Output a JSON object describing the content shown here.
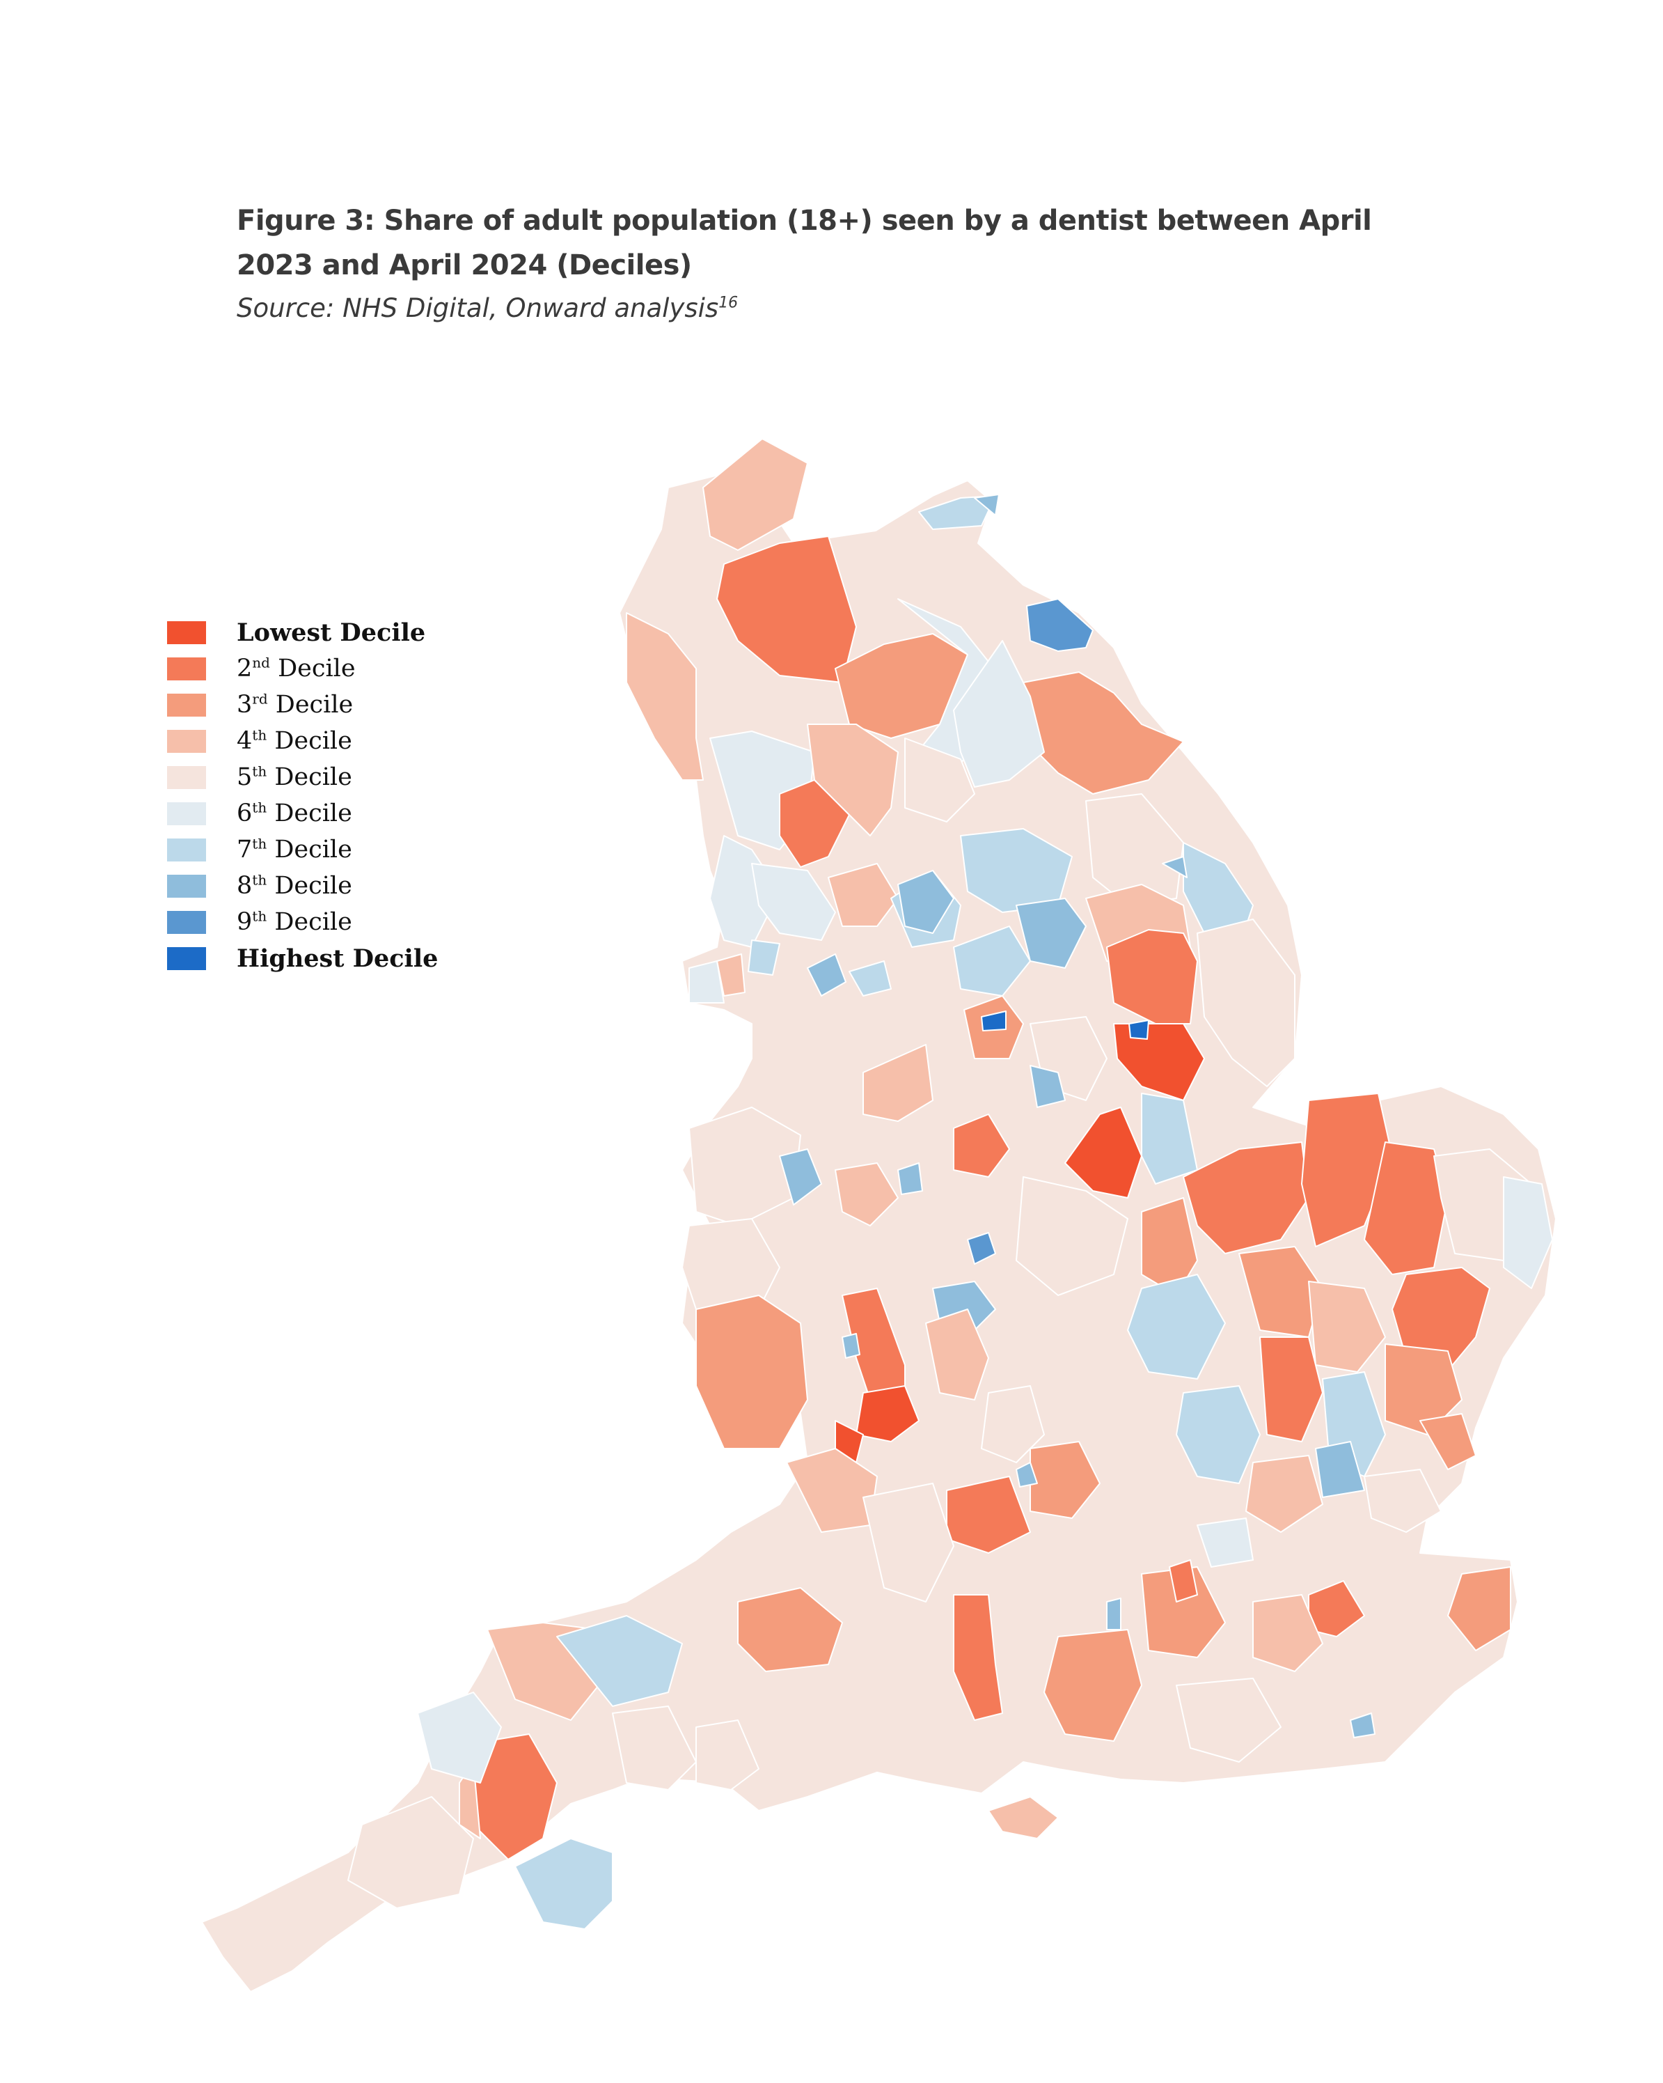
{
  "figure": {
    "title": "Figure 3: Share of adult population (18+) seen by a dentist between April 2023 and April 2024 (Deciles)",
    "source_prefix": "Source",
    "source_text": ": NHS Digital, Onward analysis",
    "source_footnote": "16"
  },
  "legend": [
    {
      "label": "Lowest Decile",
      "color": "#f1512f",
      "strong": true
    },
    {
      "num": "2",
      "suffix": "nd",
      "label": " Decile",
      "color": "#f47a58"
    },
    {
      "num": "3",
      "suffix": "rd",
      "label": " Decile",
      "color": "#f49c7c"
    },
    {
      "num": "4",
      "suffix": "th",
      "label": " Decile",
      "color": "#f6bfaa"
    },
    {
      "num": "5",
      "suffix": "th",
      "label": " Decile",
      "color": "#f5e4dd"
    },
    {
      "num": "6",
      "suffix": "th",
      "label": " Decile",
      "color": "#e2ebf1"
    },
    {
      "num": "7",
      "suffix": "th",
      "label": " Decile",
      "color": "#bcd9ea"
    },
    {
      "num": "8",
      "suffix": "th",
      "label": " Decile",
      "color": "#8fbddc"
    },
    {
      "num": "9",
      "suffix": "th",
      "label": " Decile",
      "color": "#5a97d0"
    },
    {
      "label": "Highest Decile",
      "color": "#1c6bc7",
      "strong": true
    }
  ],
  "map": {
    "region": "England",
    "value_type": "decile",
    "decile_count": 10
  }
}
